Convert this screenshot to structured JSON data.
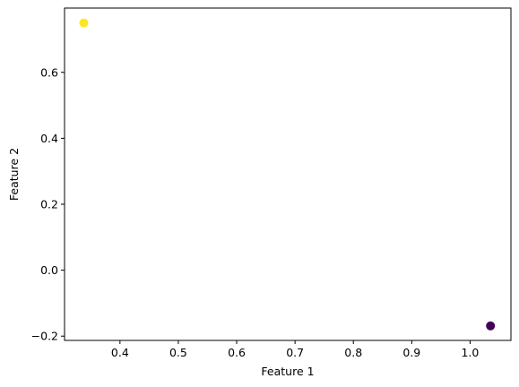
{
  "chart_data": {
    "type": "scatter",
    "title": "",
    "xlabel": "Feature 1",
    "ylabel": "Feature 2",
    "xlim": [
      0.305,
      1.07
    ],
    "ylim": [
      -0.213,
      0.795
    ],
    "x_ticks": [
      0.4,
      0.5,
      0.6,
      0.7,
      0.8,
      0.9,
      1.0
    ],
    "y_ticks": [
      -0.2,
      0.0,
      0.2,
      0.4,
      0.6
    ],
    "x_tick_labels": [
      "0.4",
      "0.5",
      "0.6",
      "0.7",
      "0.8",
      "0.9",
      "1.0"
    ],
    "y_tick_labels": [
      "−0.2",
      "0.0",
      "0.2",
      "0.4",
      "0.6"
    ],
    "grid": false,
    "legend": "none",
    "points": [
      {
        "x": 0.338,
        "y": 0.75,
        "color": "#fde725"
      },
      {
        "x": 1.035,
        "y": -0.169,
        "color": "#440154"
      }
    ]
  }
}
